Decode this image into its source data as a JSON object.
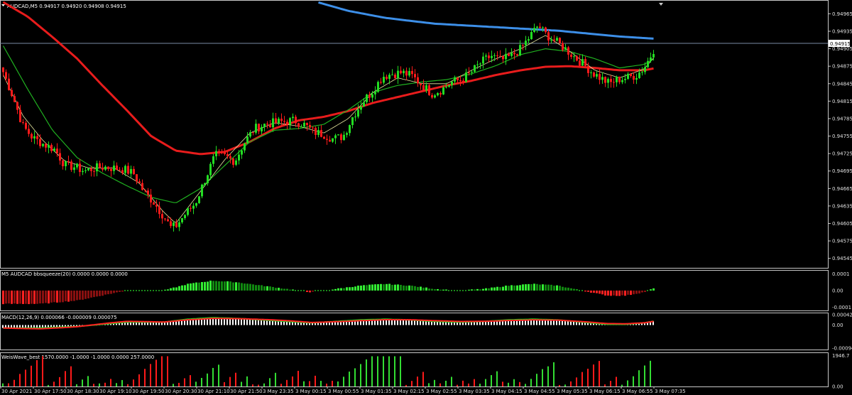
{
  "chart_data": {
    "type": "candlestick",
    "title": "AUDCAD,M5  0.94917 0.94920 0.94908 0.94915",
    "current_price": "0.94915",
    "price_axis": {
      "ylim": [
        0.9453,
        0.94985
      ],
      "ticks": [
        "0.94965",
        "0.94935",
        "0.94905",
        "0.94875",
        "0.94845",
        "0.94815",
        "0.94785",
        "0.94755",
        "0.94725",
        "0.94695",
        "0.94665",
        "0.94635",
        "0.94605",
        "0.94575",
        "0.94545"
      ]
    },
    "time_axis": {
      "ticks": [
        "30 Apr 2021",
        "30 Apr 17:50",
        "30 Apr 18:30",
        "30 Apr 19:10",
        "30 Apr 19:50",
        "30 Apr 20:30",
        "30 Apr 21:10",
        "30 Apr 21:50",
        "3 May 23:35",
        "3 May 00:15",
        "3 May 00:55",
        "3 May 01:35",
        "3 May 02:15",
        "3 May 02:55",
        "3 May 03:35",
        "3 May 04:15",
        "3 May 04:55",
        "3 May 05:35",
        "3 May 06:15",
        "3 May 06:55",
        "3 May 07:35"
      ]
    },
    "close_path": [
      [
        0,
        0.94865
      ],
      [
        8,
        0.94822
      ],
      [
        16,
        0.94772
      ],
      [
        24,
        0.94752
      ],
      [
        32,
        0.94742
      ],
      [
        42,
        0.94732
      ],
      [
        50,
        0.94705
      ],
      [
        58,
        0.94702
      ],
      [
        66,
        0.94695
      ],
      [
        74,
        0.947
      ],
      [
        82,
        0.94702
      ],
      [
        90,
        0.947
      ],
      [
        98,
        0.94698
      ],
      [
        106,
        0.9469
      ],
      [
        114,
        0.9466
      ],
      [
        122,
        0.94642
      ],
      [
        130,
        0.94618
      ],
      [
        136,
        0.94598
      ],
      [
        140,
        0.946
      ],
      [
        148,
        0.94622
      ],
      [
        156,
        0.9464
      ],
      [
        164,
        0.94682
      ],
      [
        172,
        0.94722
      ],
      [
        180,
        0.9472
      ],
      [
        188,
        0.94712
      ],
      [
        196,
        0.94745
      ],
      [
        204,
        0.94768
      ],
      [
        212,
        0.94775
      ],
      [
        220,
        0.94778
      ],
      [
        228,
        0.9478
      ],
      [
        236,
        0.94782
      ],
      [
        244,
        0.94775
      ],
      [
        252,
        0.94762
      ],
      [
        260,
        0.94758
      ],
      [
        268,
        0.9475
      ],
      [
        276,
        0.94755
      ],
      [
        284,
        0.9479
      ],
      [
        292,
        0.94815
      ],
      [
        300,
        0.94833
      ],
      [
        308,
        0.94858
      ],
      [
        316,
        0.94862
      ],
      [
        324,
        0.94864
      ],
      [
        332,
        0.94858
      ],
      [
        340,
        0.94842
      ],
      [
        348,
        0.94828
      ],
      [
        356,
        0.94835
      ],
      [
        364,
        0.94848
      ],
      [
        372,
        0.94852
      ],
      [
        380,
        0.94865
      ],
      [
        388,
        0.94882
      ],
      [
        396,
        0.94893
      ],
      [
        404,
        0.94885
      ],
      [
        412,
        0.94892
      ],
      [
        420,
        0.94905
      ],
      [
        428,
        0.94928
      ],
      [
        434,
        0.94945
      ],
      [
        440,
        0.9493
      ],
      [
        448,
        0.94918
      ],
      [
        456,
        0.94905
      ],
      [
        464,
        0.9489
      ],
      [
        470,
        0.9488
      ],
      [
        478,
        0.94864
      ],
      [
        486,
        0.94853
      ],
      [
        492,
        0.94845
      ],
      [
        498,
        0.94852
      ],
      [
        506,
        0.94855
      ],
      [
        514,
        0.9486
      ],
      [
        520,
        0.94872
      ],
      [
        526,
        0.94895
      ],
      [
        530,
        0.94915
      ]
    ],
    "ma_blue_path": [
      [
        255,
        0.94985
      ],
      [
        280,
        0.9497
      ],
      [
        310,
        0.94958
      ],
      [
        350,
        0.94948
      ],
      [
        400,
        0.94942
      ],
      [
        450,
        0.94936
      ],
      [
        500,
        0.94926
      ],
      [
        530,
        0.94922
      ]
    ],
    "ma_red_path": [
      [
        0,
        0.94985
      ],
      [
        20,
        0.9496
      ],
      [
        40,
        0.94925
      ],
      [
        60,
        0.94888
      ],
      [
        80,
        0.94843
      ],
      [
        100,
        0.948
      ],
      [
        120,
        0.94755
      ],
      [
        140,
        0.9473
      ],
      [
        160,
        0.94724
      ],
      [
        180,
        0.94728
      ],
      [
        200,
        0.94745
      ],
      [
        220,
        0.94768
      ],
      [
        240,
        0.94782
      ],
      [
        260,
        0.94788
      ],
      [
        280,
        0.94798
      ],
      [
        300,
        0.94812
      ],
      [
        320,
        0.94822
      ],
      [
        340,
        0.94832
      ],
      [
        360,
        0.94842
      ],
      [
        380,
        0.9485
      ],
      [
        400,
        0.9486
      ],
      [
        420,
        0.94868
      ],
      [
        440,
        0.94874
      ],
      [
        460,
        0.94875
      ],
      [
        480,
        0.94872
      ],
      [
        500,
        0.94868
      ],
      [
        520,
        0.94868
      ],
      [
        530,
        0.94872
      ]
    ],
    "ma_green_path": [
      [
        0,
        0.9491
      ],
      [
        20,
        0.94835
      ],
      [
        40,
        0.94765
      ],
      [
        60,
        0.94718
      ],
      [
        80,
        0.94692
      ],
      [
        100,
        0.9467
      ],
      [
        120,
        0.9465
      ],
      [
        140,
        0.9464
      ],
      [
        160,
        0.94665
      ],
      [
        180,
        0.94705
      ],
      [
        200,
        0.94745
      ],
      [
        220,
        0.94765
      ],
      [
        240,
        0.94768
      ],
      [
        260,
        0.94775
      ],
      [
        280,
        0.948
      ],
      [
        300,
        0.9483
      ],
      [
        320,
        0.94842
      ],
      [
        340,
        0.94848
      ],
      [
        360,
        0.94852
      ],
      [
        380,
        0.94862
      ],
      [
        400,
        0.94876
      ],
      [
        420,
        0.94895
      ],
      [
        440,
        0.94905
      ],
      [
        460,
        0.949
      ],
      [
        480,
        0.94888
      ],
      [
        500,
        0.94872
      ],
      [
        520,
        0.94878
      ],
      [
        530,
        0.9489
      ]
    ],
    "ma_yellow_path": [
      [
        0,
        0.9486
      ],
      [
        16,
        0.9479
      ],
      [
        32,
        0.94748
      ],
      [
        50,
        0.94712
      ],
      [
        70,
        0.947
      ],
      [
        90,
        0.947
      ],
      [
        110,
        0.94675
      ],
      [
        130,
        0.94625
      ],
      [
        140,
        0.94605
      ],
      [
        160,
        0.9466
      ],
      [
        180,
        0.94715
      ],
      [
        200,
        0.9476
      ],
      [
        220,
        0.94778
      ],
      [
        240,
        0.94772
      ],
      [
        260,
        0.9476
      ],
      [
        280,
        0.94785
      ],
      [
        300,
        0.9483
      ],
      [
        320,
        0.94855
      ],
      [
        340,
        0.94845
      ],
      [
        360,
        0.94845
      ],
      [
        380,
        0.94868
      ],
      [
        400,
        0.94888
      ],
      [
        420,
        0.94905
      ],
      [
        440,
        0.94928
      ],
      [
        460,
        0.949
      ],
      [
        480,
        0.94868
      ],
      [
        500,
        0.94855
      ],
      [
        520,
        0.9487
      ],
      [
        530,
        0.94895
      ]
    ],
    "bbsqueeze": {
      "label": "M5 AUDCAD bbsqueeze(20) 0.0000 0.0000 0.0000",
      "ticks": [
        "0.0001",
        "0.00",
        "-0.0001"
      ],
      "ylim": [
        -0.00012,
        0.00012
      ],
      "profile": [
        [
          0,
          -8e-05
        ],
        [
          30,
          -8e-05
        ],
        [
          60,
          -6e-05
        ],
        [
          80,
          -3e-05
        ],
        [
          100,
          0.0
        ],
        [
          130,
          0.0
        ],
        [
          150,
          4e-05
        ],
        [
          170,
          6e-05
        ],
        [
          190,
          5e-05
        ],
        [
          210,
          3e-05
        ],
        [
          230,
          1e-05
        ],
        [
          250,
          -1e-05
        ],
        [
          270,
          1e-05
        ],
        [
          290,
          3e-05
        ],
        [
          310,
          4e-05
        ],
        [
          330,
          3e-05
        ],
        [
          350,
          1e-05
        ],
        [
          370,
          0.0
        ],
        [
          390,
          1e-05
        ],
        [
          410,
          3e-05
        ],
        [
          430,
          4e-05
        ],
        [
          450,
          3e-05
        ],
        [
          470,
          0.0
        ],
        [
          490,
          -3e-05
        ],
        [
          505,
          -3e-05
        ],
        [
          520,
          -1e-05
        ],
        [
          530,
          2e-05
        ]
      ]
    },
    "macd": {
      "label": "MACD(12,26,9) 0.000066 -0.000009 0.000075",
      "ticks": [
        "0.000421",
        "0.00",
        "-0.000941"
      ],
      "ylim": [
        -0.001,
        0.00048
      ]
    },
    "weiswave": {
      "label": "WeisWave_best 1570.0000 -1.0000 -1.0000 0.0000 257.0000",
      "ticks": [
        "1946.7",
        "0.00"
      ],
      "ylim": [
        0,
        2100
      ]
    },
    "colors": {
      "bull": "#22dd22",
      "bear": "#ff1a1a",
      "ma_blue": "#3d8fe8",
      "ma_red": "#e81c1c",
      "ma_green": "#20b020",
      "ma_yellow": "#e8e8a0"
    }
  }
}
